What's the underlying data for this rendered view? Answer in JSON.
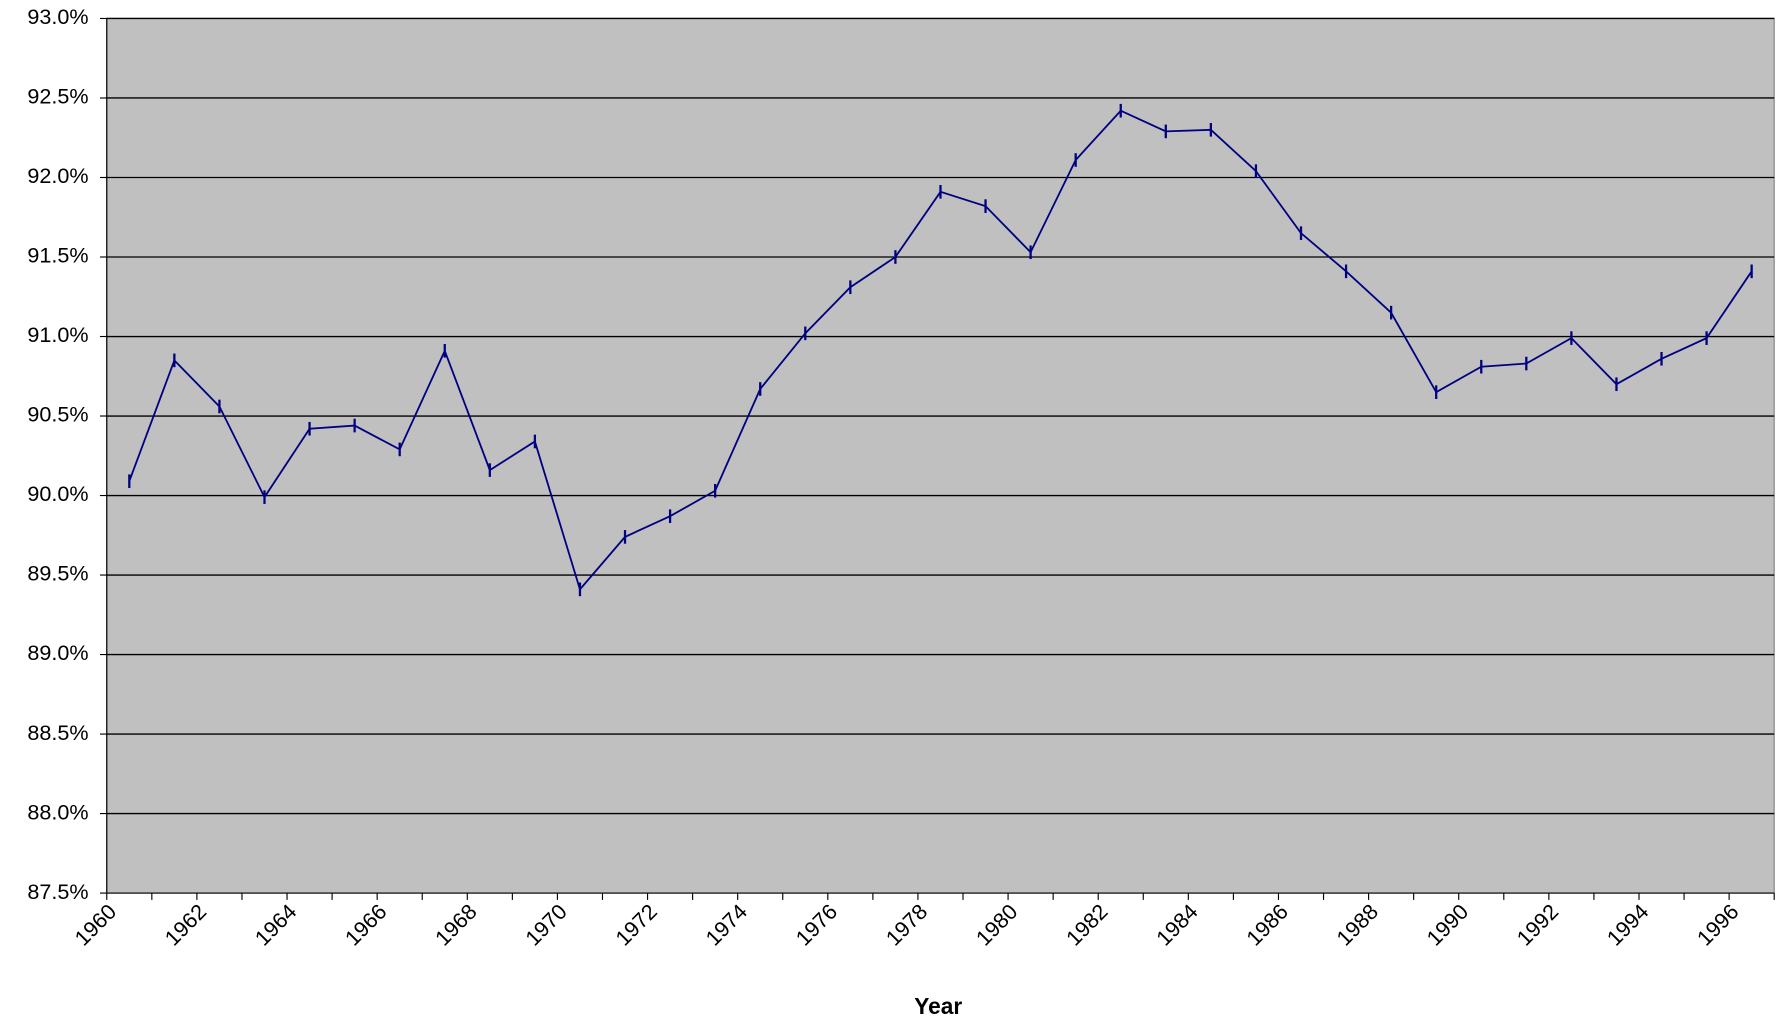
{
  "chart_data": {
    "type": "line",
    "x_label": "Year",
    "categories": [
      "1960",
      null,
      "1962",
      null,
      "1964",
      null,
      "1966",
      null,
      "1968",
      null,
      "1970",
      null,
      "1972",
      null,
      "1974",
      null,
      "1976",
      null,
      "1978",
      null,
      "1980",
      null,
      "1982",
      null,
      "1984",
      null,
      "1986",
      null,
      "1988",
      null,
      "1990",
      null,
      "1992",
      null,
      "1994",
      null,
      "1996"
    ],
    "values": [
      90.09,
      90.85,
      90.56,
      89.99,
      90.42,
      90.44,
      90.29,
      90.91,
      90.16,
      90.34,
      89.41,
      89.74,
      89.87,
      90.03,
      90.67,
      91.02,
      91.31,
      91.5,
      91.91,
      91.82,
      91.53,
      92.11,
      92.42,
      92.29,
      92.3,
      92.04,
      91.65,
      91.41,
      91.15,
      90.65,
      90.81,
      90.83,
      90.99,
      90.7,
      90.86,
      90.99,
      91.41
    ],
    "color": "#000080",
    "ylim": [
      87.5,
      93.0
    ],
    "yticks": [
      {
        "value": 87.5,
        "label": "87.5%"
      },
      {
        "value": 88.0,
        "label": "88.0%"
      },
      {
        "value": 88.5,
        "label": "88.5%"
      },
      {
        "value": 89.0,
        "label": "89.0%"
      },
      {
        "value": 89.5,
        "label": "89.5%"
      },
      {
        "value": 90.0,
        "label": "90.0%"
      },
      {
        "value": 90.5,
        "label": "90.5%"
      },
      {
        "value": 91.0,
        "label": "91.0%"
      },
      {
        "value": 91.5,
        "label": "91.5%"
      },
      {
        "value": 92.0,
        "label": "92.0%"
      },
      {
        "value": 92.5,
        "label": "92.5%"
      },
      {
        "value": 93.0,
        "label": "93.0%"
      }
    ],
    "grid": true
  }
}
